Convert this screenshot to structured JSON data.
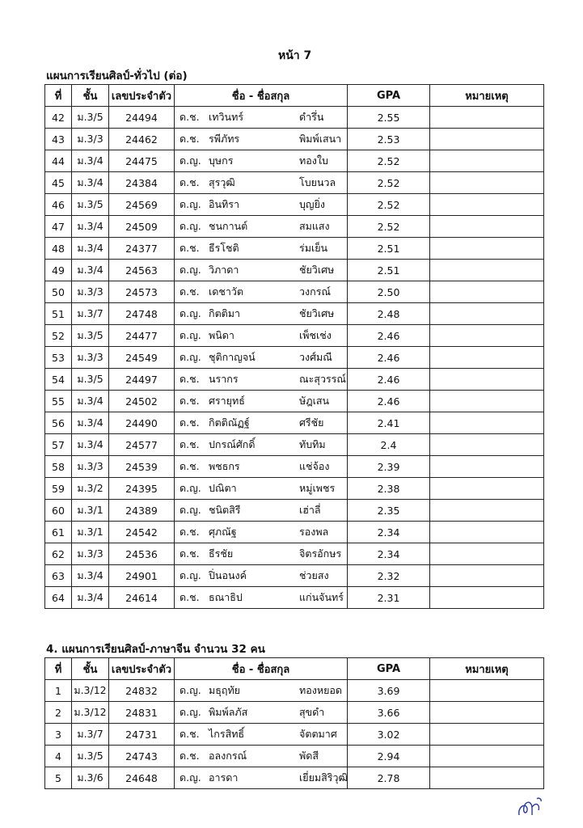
{
  "page_label": "หน้า 7",
  "columns": {
    "no": "ที่",
    "class": "ชั้น",
    "id": "เลขประจำตัว",
    "name": "ชื่อ - ชื่อสกุล",
    "gpa": "GPA",
    "note": "หมายเหตุ"
  },
  "section1": {
    "title": "แผนการเรียนศิลป์-ทั่วไป (ต่อ)",
    "rows": [
      [
        "42",
        "ม.3/5",
        "24494",
        "ด.ช.",
        "เทวินทร์",
        "ดำรึ่น",
        "2.55"
      ],
      [
        "43",
        "ม.3/3",
        "24462",
        "ด.ช.",
        "รพีภัทร",
        "พิมพ์เสนา",
        "2.53"
      ],
      [
        "44",
        "ม.3/4",
        "24475",
        "ด.ญ.",
        "บุษกร",
        "ทองใบ",
        "2.52"
      ],
      [
        "45",
        "ม.3/4",
        "24384",
        "ด.ช.",
        "สุรวุฒิ",
        "โบยนวล",
        "2.52"
      ],
      [
        "46",
        "ม.3/5",
        "24569",
        "ด.ญ.",
        "อินทิรา",
        "บุญยิ่ง",
        "2.52"
      ],
      [
        "47",
        "ม.3/4",
        "24509",
        "ด.ญ.",
        "ชนกานต์",
        "สมแสง",
        "2.52"
      ],
      [
        "48",
        "ม.3/4",
        "24377",
        "ด.ช.",
        "ธีรโชติ",
        "ร่มเย็น",
        "2.51"
      ],
      [
        "49",
        "ม.3/4",
        "24563",
        "ด.ญ.",
        "วิภาดา",
        "ชัยวิเศษ",
        "2.51"
      ],
      [
        "50",
        "ม.3/3",
        "24573",
        "ด.ช.",
        "เดชาวัต",
        "วงกรณ์",
        "2.50"
      ],
      [
        "51",
        "ม.3/7",
        "24748",
        "ด.ญ.",
        "กิตติมา",
        "ชัยวิเศษ",
        "2.48"
      ],
      [
        "52",
        "ม.3/5",
        "24477",
        "ด.ญ.",
        "พนิดา",
        "เพ็ชเช่ง",
        "2.46"
      ],
      [
        "53",
        "ม.3/3",
        "24549",
        "ด.ญ.",
        "ชุติกาญจน์",
        "วงศ์มณี",
        "2.46"
      ],
      [
        "54",
        "ม.3/5",
        "24497",
        "ด.ช.",
        "นรากร",
        "ณะสุวรรณ์",
        "2.46"
      ],
      [
        "55",
        "ม.3/4",
        "24502",
        "ด.ช.",
        "ศรายุทธ์",
        "ษัฎเสน",
        "2.46"
      ],
      [
        "56",
        "ม.3/4",
        "24490",
        "ด.ช.",
        "กิตติณัฏฐ์",
        "ศรีชัย",
        "2.41"
      ],
      [
        "57",
        "ม.3/4",
        "24577",
        "ด.ช.",
        "ปกรณ์ศักดิ์",
        "ทับทิม",
        "2.4"
      ],
      [
        "58",
        "ม.3/3",
        "24539",
        "ด.ช.",
        "พชธกร",
        "แช่จ้อง",
        "2.39"
      ],
      [
        "59",
        "ม.3/2",
        "24395",
        "ด.ญ.",
        "ปณิตา",
        "หมู่เพชร",
        "2.38"
      ],
      [
        "60",
        "ม.3/1",
        "24389",
        "ด.ญ.",
        "ชนิตสิรี",
        "เฮ่าลี่",
        "2.35"
      ],
      [
        "61",
        "ม.3/1",
        "24542",
        "ด.ช.",
        "ศุภณัฐ",
        "รองพล",
        "2.34"
      ],
      [
        "62",
        "ม.3/3",
        "24536",
        "ด.ช.",
        "ธีรชัย",
        "จิตรอักษร",
        "2.34"
      ],
      [
        "63",
        "ม.3/4",
        "24901",
        "ด.ญ.",
        "ปิ่นอนงค์",
        "ช่วยสง",
        "2.32"
      ],
      [
        "64",
        "ม.3/4",
        "24614",
        "ด.ช.",
        "ธณาธิป",
        "แก่นจันทร์",
        "2.31"
      ]
    ]
  },
  "section2": {
    "title": "4. แผนการเรียนศิลป์-ภาษาจีน จำนวน 32 คน",
    "rows": [
      [
        "1",
        "ม.3/12",
        "24832",
        "ด.ญ.",
        "มธุฤทัย",
        "ทองหยอด",
        "3.69"
      ],
      [
        "2",
        "ม.3/12",
        "24831",
        "ด.ญ.",
        "พิมพ์ลภัส",
        "สุขดำ",
        "3.66"
      ],
      [
        "3",
        "ม.3/7",
        "24731",
        "ด.ช.",
        "ไกรสิทธิ์",
        "จัตตมาศ",
        "3.02"
      ],
      [
        "4",
        "ม.3/5",
        "24743",
        "ด.ช.",
        "อลงกรณ์",
        "พัดสี",
        "2.94"
      ],
      [
        "5",
        "ม.3/6",
        "24648",
        "ด.ญ.",
        "อารดา",
        "เยี่ยมสิริวุฒิ",
        "2.78"
      ]
    ]
  }
}
